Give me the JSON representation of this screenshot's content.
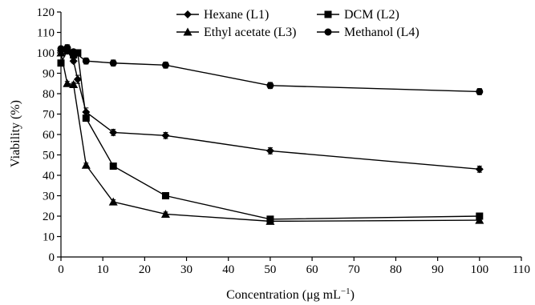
{
  "chart_data": {
    "type": "line",
    "xlabel": "Concentration (μg mL",
    "xlabel_sup": "−1",
    "xlabel_end": ")",
    "ylabel": "Viability (%)",
    "xlim": [
      0,
      110
    ],
    "ylim": [
      0,
      120
    ],
    "x_ticks": [
      "0",
      "10",
      "20",
      "30",
      "40",
      "50",
      "60",
      "70",
      "80",
      "90",
      "100",
      "110"
    ],
    "y_ticks": [
      "0",
      "10",
      "20",
      "30",
      "40",
      "50",
      "60",
      "70",
      "80",
      "90",
      "100",
      "110",
      "120"
    ],
    "grid": false,
    "legend_position": "top-right",
    "series": [
      {
        "name": "Hexane (L1)",
        "marker": "diamond",
        "x": [
          0,
          1.5,
          3,
          4,
          6,
          12.5,
          25,
          50,
          100
        ],
        "y": [
          101,
          101,
          96,
          87,
          71,
          61,
          59.5,
          52,
          43
        ],
        "err": [
          1,
          1,
          1,
          2,
          2,
          1.5,
          1.5,
          1.5,
          1.5
        ]
      },
      {
        "name": "DCM (L2)",
        "marker": "square",
        "x": [
          0,
          1.5,
          3,
          4,
          6,
          12.5,
          25,
          50,
          100
        ],
        "y": [
          95,
          101,
          99,
          100,
          68,
          44.5,
          30,
          18.5,
          20
        ],
        "err": [
          1,
          1,
          1,
          1,
          1,
          1,
          1,
          1,
          1
        ]
      },
      {
        "name": "Ethyl acetate (L3)",
        "marker": "triangle",
        "x": [
          0,
          1.5,
          3,
          6,
          12.5,
          25,
          50,
          100
        ],
        "y": [
          100,
          85,
          84.5,
          45,
          27,
          21,
          17.5,
          18
        ],
        "err": [
          1,
          1,
          1,
          1,
          1,
          1,
          1,
          1
        ]
      },
      {
        "name": "Methanol (L4)",
        "marker": "circle",
        "x": [
          0,
          1.5,
          3,
          6,
          12.5,
          25,
          50,
          100
        ],
        "y": [
          102,
          102.5,
          100.5,
          96,
          95,
          94,
          84,
          81
        ],
        "err": [
          1,
          1.5,
          1,
          1.5,
          1.5,
          1.5,
          1.5,
          1.5
        ]
      }
    ]
  }
}
